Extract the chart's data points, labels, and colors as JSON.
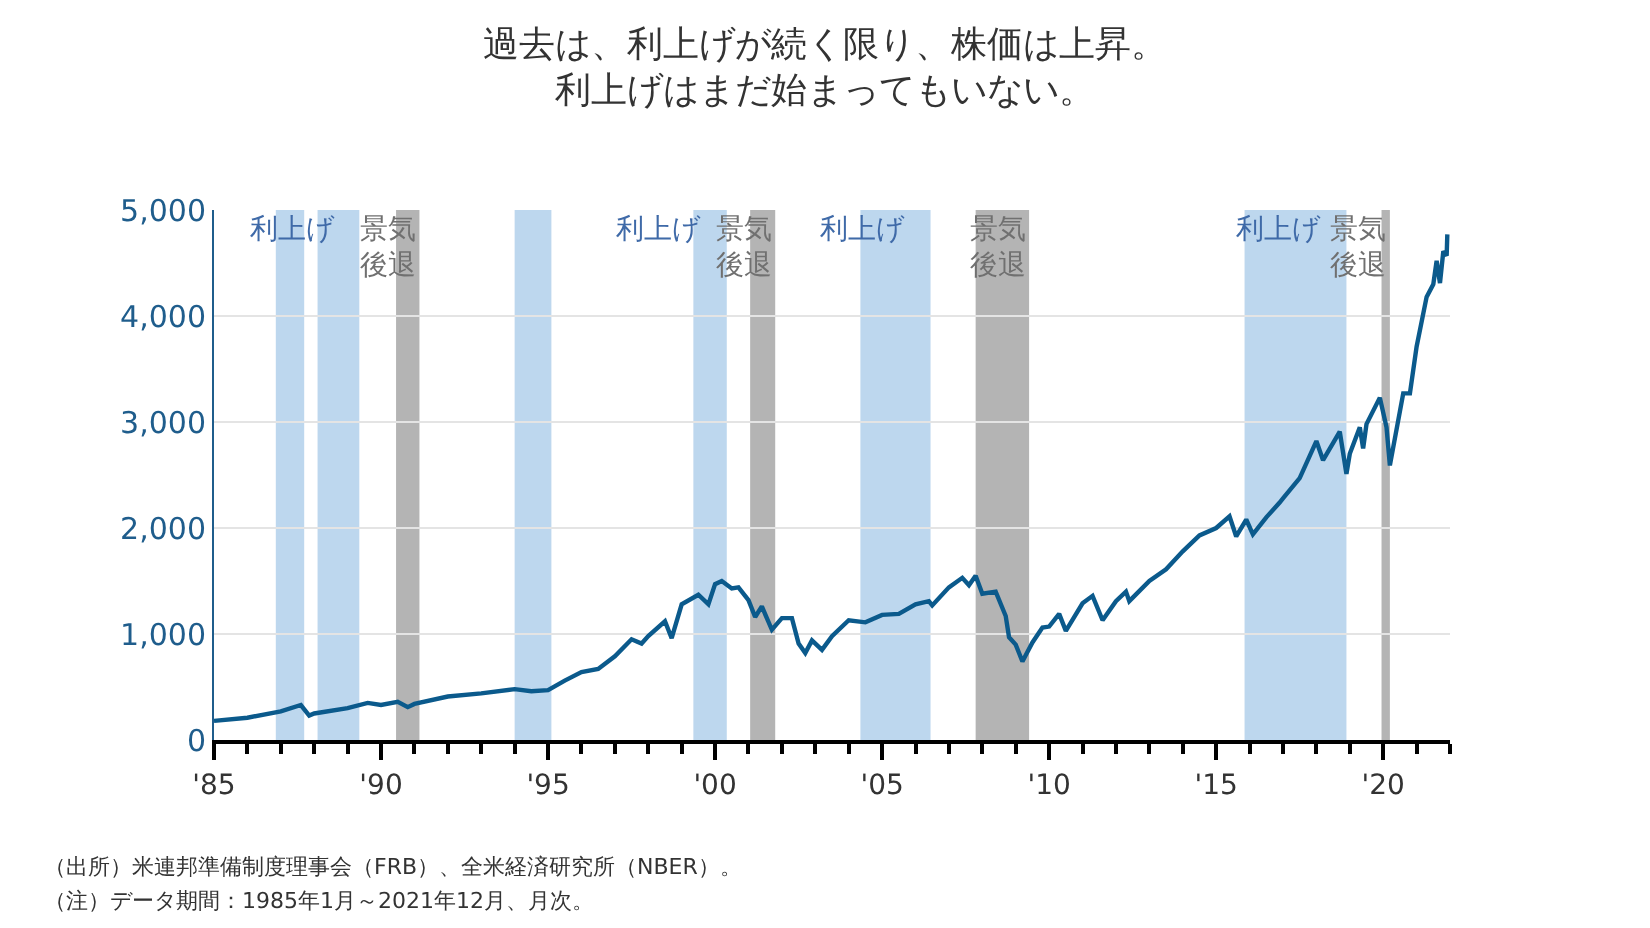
{
  "chart_data": {
    "type": "line",
    "title": "過去は、利上げが続く限り、株価は上昇。",
    "subtitle": "利上げはまだ始まってもいない。",
    "x": [
      1985.0,
      1986.0,
      1987.0,
      1987.6,
      1987.85,
      1988.0,
      1989.0,
      1989.6,
      1990.0,
      1990.5,
      1990.8,
      1991.0,
      1992.0,
      1993.0,
      1994.0,
      1994.5,
      1995.0,
      1995.5,
      1996.0,
      1996.5,
      1997.0,
      1997.5,
      1997.8,
      1998.0,
      1998.5,
      1998.7,
      1999.0,
      1999.5,
      1999.8,
      2000.0,
      2000.2,
      2000.5,
      2000.7,
      2001.0,
      2001.2,
      2001.4,
      2001.7,
      2002.0,
      2002.3,
      2002.5,
      2002.7,
      2002.9,
      2003.2,
      2003.5,
      2004.0,
      2004.5,
      2005.0,
      2005.5,
      2006.0,
      2006.4,
      2006.5,
      2007.0,
      2007.4,
      2007.6,
      2007.8,
      2008.0,
      2008.4,
      2008.7,
      2008.8,
      2009.0,
      2009.2,
      2009.5,
      2009.8,
      2010.0,
      2010.3,
      2010.5,
      2011.0,
      2011.3,
      2011.6,
      2012.0,
      2012.3,
      2012.4,
      2013.0,
      2013.5,
      2014.0,
      2014.5,
      2015.0,
      2015.4,
      2015.6,
      2015.9,
      2016.1,
      2016.5,
      2016.9,
      2017.0,
      2017.5,
      2018.0,
      2018.2,
      2018.7,
      2018.9,
      2019.0,
      2019.3,
      2019.4,
      2019.5,
      2019.9,
      2020.1,
      2020.2,
      2020.5,
      2020.6,
      2020.8,
      2021.0,
      2021.3,
      2021.5,
      2021.6,
      2021.7,
      2021.8,
      2021.9,
      2021.92
    ],
    "series": [
      {
        "color": "#0b5a8c",
        "values": [
          180,
          210,
          270,
          330,
          230,
          250,
          300,
          350,
          330,
          360,
          310,
          340,
          410,
          440,
          480,
          460,
          470,
          560,
          640,
          670,
          790,
          950,
          910,
          980,
          1120,
          960,
          1280,
          1370,
          1280,
          1470,
          1500,
          1430,
          1440,
          1320,
          1160,
          1260,
          1040,
          1150,
          1150,
          910,
          820,
          940,
          850,
          980,
          1130,
          1110,
          1180,
          1190,
          1280,
          1310,
          1270,
          1440,
          1530,
          1460,
          1550,
          1380,
          1400,
          1170,
          970,
          900,
          740,
          920,
          1060,
          1070,
          1190,
          1030,
          1290,
          1360,
          1130,
          1310,
          1400,
          1310,
          1500,
          1610,
          1780,
          1930,
          2000,
          2110,
          1920,
          2080,
          1940,
          2100,
          2240,
          2280,
          2470,
          2820,
          2640,
          2910,
          2510,
          2700,
          2950,
          2750,
          2980,
          3230,
          2950,
          2590,
          3100,
          3270,
          3270,
          3710,
          4180,
          4300,
          4520,
          4310,
          4610,
          4570,
          4770
        ]
      }
    ],
    "xlim": [
      1985,
      2022
    ],
    "xticks": [
      {
        "value": 1985,
        "label": "'85"
      },
      {
        "value": 1990,
        "label": "'90"
      },
      {
        "value": 1995,
        "label": "'95"
      },
      {
        "value": 2000,
        "label": "'00"
      },
      {
        "value": 2005,
        "label": "'05"
      },
      {
        "value": 2010,
        "label": "'10"
      },
      {
        "value": 2015,
        "label": "'15"
      },
      {
        "value": 2020,
        "label": "'20"
      }
    ],
    "ylim": [
      0,
      5000
    ],
    "yticks": [
      {
        "value": 0,
        "label": "0"
      },
      {
        "value": 1000,
        "label": "1,000"
      },
      {
        "value": 2000,
        "label": "2,000"
      },
      {
        "value": 3000,
        "label": "3,000"
      },
      {
        "value": 4000,
        "label": "4,000"
      },
      {
        "value": 5000,
        "label": "5,000"
      }
    ],
    "grid": "y",
    "bands": [
      {
        "axis": "x",
        "from": 1986.85,
        "to": 1987.7,
        "color": "#bdd7ee"
      },
      {
        "axis": "x",
        "from": 1988.1,
        "to": 1989.35,
        "color": "#bdd7ee",
        "label": "利上げ"
      },
      {
        "axis": "x",
        "from": 1990.45,
        "to": 1991.15,
        "color": "#b4b4b4",
        "label": "景気後退"
      },
      {
        "axis": "x",
        "from": 1994.0,
        "to": 1995.1,
        "color": "#bdd7ee"
      },
      {
        "axis": "x",
        "from": 1999.35,
        "to": 2000.35,
        "color": "#bdd7ee",
        "label": "利上げ"
      },
      {
        "axis": "x",
        "from": 2001.05,
        "to": 2001.8,
        "color": "#b4b4b4",
        "label": "景気後退"
      },
      {
        "axis": "x",
        "from": 2004.35,
        "to": 2006.45,
        "color": "#bdd7ee",
        "label": "利上げ"
      },
      {
        "axis": "x",
        "from": 2007.8,
        "to": 2009.4,
        "color": "#b4b4b4",
        "label": "景気後退"
      },
      {
        "axis": "x",
        "from": 2015.85,
        "to": 2018.9,
        "color": "#bdd7ee",
        "label": "利上げ"
      },
      {
        "axis": "x",
        "from": 2019.95,
        "to": 2020.2,
        "color": "#b4b4b4",
        "label": "景気後退"
      }
    ],
    "annotations": [
      "（出所）米連邦準備制度理事会（FRB）、全米経済研究所（NBER）。",
      "（注）データ期間：1985年1月～2021年12月、月次。"
    ]
  }
}
